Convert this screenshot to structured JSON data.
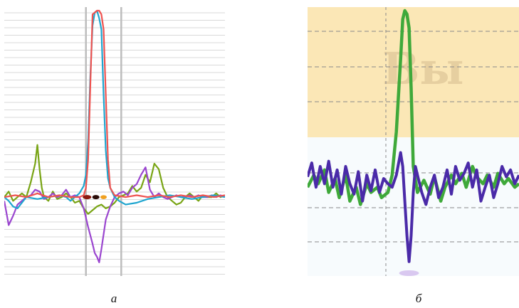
{
  "captions": {
    "a": "а",
    "b": "б"
  },
  "watermark": "Вы",
  "colors": {
    "a_background": "#ffffff",
    "a_gridline": "#d9d9d9",
    "a_marker_line": "#bdbdbd",
    "red": "#ef5350",
    "cyan": "#1ea5cf",
    "olive": "#78a414",
    "violet": "#9a45cf",
    "b_band_top": "#fbe7b6",
    "b_band_bottom": "#f7fbfd",
    "b_green": "#3fa93a",
    "b_indigo": "#4a2aa8",
    "b_grid": "#8a8a8a"
  },
  "chart_data": [
    {
      "type": "line",
      "panel": "а",
      "title": "",
      "xlabel": "",
      "ylabel": "",
      "xlim": [
        0,
        100
      ],
      "ylim": [
        -0.4,
        1.0
      ],
      "grid": true,
      "vertical_markers": [
        37,
        53
      ],
      "series": [
        {
          "color": "red",
          "x": [
            0,
            5,
            10,
            15,
            20,
            25,
            30,
            34,
            36,
            37,
            38,
            39,
            40,
            42,
            43,
            44,
            45,
            46,
            47,
            48,
            50,
            55,
            60,
            65,
            70,
            75,
            80,
            85,
            90,
            95,
            100
          ],
          "y": [
            0.0,
            0.01,
            0.0,
            0.02,
            0.0,
            0.01,
            0.0,
            0.0,
            0.01,
            0.05,
            0.2,
            0.6,
            0.98,
            1.0,
            1.0,
            0.98,
            0.9,
            0.55,
            0.2,
            0.05,
            0.01,
            0.0,
            0.01,
            0.0,
            0.01,
            0.0,
            0.01,
            0.0,
            0.01,
            0.0,
            0.01
          ]
        },
        {
          "color": "cyan",
          "x": [
            0,
            2,
            4,
            6,
            8,
            10,
            15,
            20,
            25,
            28,
            30,
            32,
            34,
            36,
            37,
            38,
            39,
            40,
            41,
            42,
            43,
            44,
            45,
            46,
            47,
            48,
            50,
            52,
            55,
            60,
            65,
            70,
            75,
            80,
            85,
            90,
            95,
            100
          ],
          "y": [
            0.0,
            -0.02,
            -0.05,
            -0.06,
            -0.03,
            0.0,
            -0.01,
            0.0,
            0.01,
            0.0,
            -0.02,
            0.0,
            0.02,
            0.06,
            0.12,
            0.3,
            0.65,
            0.92,
            0.99,
            1.0,
            0.96,
            0.9,
            0.55,
            0.25,
            0.1,
            0.05,
            0.0,
            -0.02,
            -0.04,
            -0.03,
            -0.01,
            0.0,
            0.01,
            0.0,
            -0.01,
            0.0,
            0.01,
            0.0
          ]
        },
        {
          "color": "olive",
          "x": [
            0,
            2,
            4,
            6,
            8,
            10,
            12,
            14,
            15,
            16,
            17,
            18,
            20,
            22,
            24,
            26,
            28,
            30,
            32,
            34,
            36,
            38,
            40,
            42,
            44,
            46,
            48,
            50,
            52,
            54,
            56,
            58,
            60,
            62,
            64,
            66,
            68,
            70,
            72,
            74,
            76,
            78,
            80,
            82,
            84,
            86,
            88,
            90,
            92,
            94,
            96,
            98,
            100
          ],
          "y": [
            0.0,
            0.03,
            -0.02,
            0.0,
            0.02,
            0.0,
            0.08,
            0.18,
            0.28,
            0.15,
            0.05,
            0.0,
            -0.02,
            0.03,
            -0.01,
            0.0,
            0.02,
            0.0,
            -0.03,
            -0.02,
            -0.06,
            -0.09,
            -0.07,
            -0.05,
            -0.04,
            -0.06,
            -0.05,
            -0.03,
            0.0,
            0.01,
            0.02,
            0.06,
            0.03,
            0.05,
            0.12,
            0.08,
            0.18,
            0.15,
            0.05,
            0.0,
            -0.02,
            -0.04,
            -0.03,
            0.0,
            0.02,
            0.0,
            -0.02,
            0.01,
            0.0,
            0.0,
            0.02,
            0.0,
            0.01
          ]
        },
        {
          "color": "violet",
          "x": [
            0,
            2,
            4,
            6,
            8,
            10,
            12,
            14,
            16,
            18,
            20,
            22,
            24,
            26,
            28,
            30,
            32,
            34,
            36,
            38,
            40,
            41,
            42,
            43,
            44,
            45,
            46,
            48,
            50,
            52,
            54,
            56,
            58,
            60,
            62,
            64,
            66,
            68,
            70,
            72,
            74,
            76,
            78,
            80,
            82,
            84,
            86,
            88,
            90,
            92,
            94,
            96,
            98,
            100
          ],
          "y": [
            -0.02,
            -0.15,
            -0.1,
            -0.04,
            -0.02,
            0.0,
            0.01,
            0.04,
            0.03,
            -0.01,
            0.0,
            0.02,
            0.0,
            0.01,
            0.04,
            0.0,
            0.01,
            0.0,
            -0.06,
            -0.16,
            -0.25,
            -0.3,
            -0.32,
            -0.35,
            -0.28,
            -0.2,
            -0.12,
            -0.05,
            0.0,
            0.02,
            0.03,
            0.01,
            0.05,
            0.07,
            0.12,
            0.16,
            0.04,
            0.0,
            0.02,
            0.0,
            -0.01,
            0.0,
            0.01,
            0.0,
            0.0,
            0.01,
            0.0,
            0.01,
            0.0,
            0.0,
            0.01,
            0.0,
            0.01,
            0.0
          ]
        }
      ]
    },
    {
      "type": "line",
      "panel": "б",
      "title": "",
      "xlabel": "",
      "ylabel": "",
      "xlim": [
        0,
        100
      ],
      "ylim": [
        -0.5,
        1.0
      ],
      "grid": true,
      "series": [
        {
          "color": "b_green",
          "x": [
            0,
            3,
            5,
            8,
            10,
            13,
            15,
            18,
            20,
            23,
            25,
            28,
            30,
            33,
            35,
            38,
            40,
            42,
            44,
            45,
            46,
            47,
            48,
            49,
            50,
            52,
            55,
            58,
            60,
            63,
            65,
            68,
            70,
            73,
            75,
            78,
            80,
            83,
            85,
            88,
            90,
            93,
            95,
            98,
            100
          ],
          "y": [
            -0.02,
            0.05,
            0.0,
            0.08,
            -0.05,
            0.03,
            -0.08,
            0.05,
            -0.1,
            -0.02,
            -0.12,
            0.0,
            -0.05,
            -0.02,
            -0.08,
            -0.05,
            0.05,
            0.3,
            0.72,
            0.95,
            1.0,
            0.98,
            0.9,
            0.55,
            0.1,
            -0.05,
            0.02,
            -0.06,
            0.04,
            -0.1,
            -0.02,
            0.05,
            0.0,
            0.06,
            -0.02,
            0.1,
            0.04,
            0.0,
            0.05,
            -0.02,
            0.06,
            0.0,
            0.03,
            -0.02,
            0.0
          ]
        },
        {
          "color": "b_indigo",
          "x": [
            0,
            2,
            4,
            6,
            8,
            10,
            12,
            14,
            16,
            18,
            20,
            22,
            24,
            26,
            28,
            30,
            32,
            34,
            36,
            38,
            40,
            42,
            44,
            45,
            46,
            47,
            48,
            49,
            50,
            51,
            52,
            54,
            56,
            58,
            60,
            62,
            64,
            66,
            68,
            70,
            72,
            74,
            76,
            78,
            80,
            82,
            84,
            86,
            88,
            90,
            92,
            94,
            96,
            98,
            100
          ],
          "y": [
            0.04,
            0.12,
            -0.02,
            0.1,
            0.0,
            0.13,
            -0.02,
            0.08,
            -0.06,
            0.1,
            0.0,
            -0.06,
            0.07,
            -0.1,
            0.05,
            -0.04,
            0.08,
            -0.05,
            0.03,
            0.0,
            -0.02,
            0.05,
            0.18,
            0.1,
            -0.1,
            -0.3,
            -0.45,
            -0.3,
            -0.05,
            0.1,
            0.05,
            -0.05,
            -0.12,
            -0.02,
            0.05,
            -0.08,
            -0.02,
            0.08,
            -0.06,
            0.1,
            0.02,
            0.06,
            0.12,
            -0.02,
            0.08,
            -0.1,
            -0.02,
            0.05,
            -0.08,
            0.0,
            0.1,
            0.04,
            0.08,
            0.0,
            0.05
          ]
        }
      ]
    }
  ]
}
